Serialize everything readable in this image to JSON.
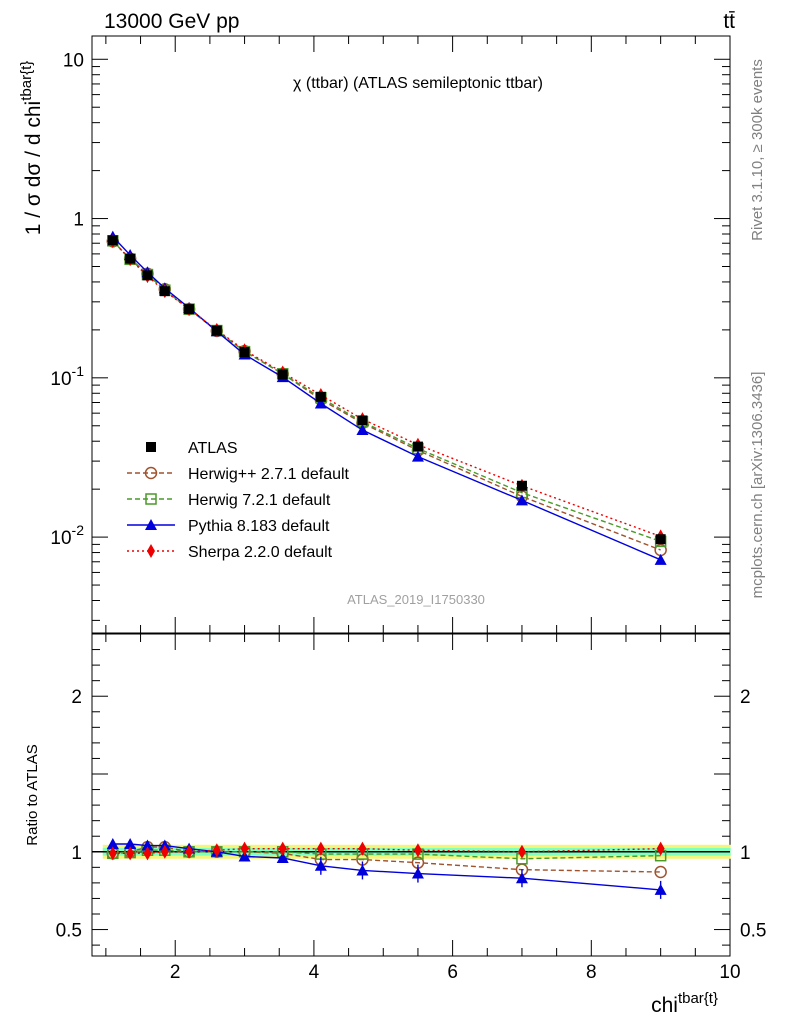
{
  "header": {
    "energy_label": "13000 GeV pp",
    "process_label": "tt̄"
  },
  "side": {
    "rivet_label": "Rivet 3.1.10, ≥ 300k events",
    "mcplots_label": "mcplots.cern.ch [arXiv:1306.3436]"
  },
  "colors": {
    "atlas": "#000000",
    "herwigpp": "#a0522d",
    "herwig7": "#4a9a2a",
    "pythia": "#0000dd",
    "sherpa": "#ee0000",
    "band_inner": "#7fffc0",
    "band_outer": "#f5f57a"
  },
  "chart_data": [
    {
      "type": "line",
      "panel": "main",
      "title": "χ (ttbar) (ATLAS semileptonic ttbar)",
      "watermark": "ATLAS_2019_I1750330",
      "xlabel": "chi^{tbar{t}}",
      "ylabel": "1 / σ dσ / d chi^{tbar{t}}",
      "yscale": "log",
      "xlim": [
        0.8,
        10.0
      ],
      "ylim": [
        0.0025,
        14.0
      ],
      "legend_position": "middle-left",
      "x": [
        1.1,
        1.35,
        1.6,
        1.85,
        2.2,
        2.6,
        3.0,
        3.55,
        4.1,
        4.7,
        5.5,
        7.0,
        9.0
      ],
      "series": [
        {
          "name": "ATLAS",
          "key": "atlas",
          "marker": "square",
          "linestyle": "none",
          "values": [
            0.73,
            0.56,
            0.44,
            0.35,
            0.27,
            0.198,
            0.145,
            0.105,
            0.076,
            0.054,
            0.037,
            0.021,
            0.0097
          ]
        },
        {
          "name": "Herwig++ 2.7.1 default",
          "key": "herwigpp",
          "marker": "open-circle",
          "linestyle": "dashed",
          "values": [
            0.72,
            0.56,
            0.45,
            0.36,
            0.27,
            0.197,
            0.147,
            0.106,
            0.073,
            0.052,
            0.035,
            0.018,
            0.0083
          ]
        },
        {
          "name": "Herwig 7.2.1 default",
          "key": "herwig7",
          "marker": "open-square",
          "linestyle": "dashed",
          "values": [
            0.725,
            0.555,
            0.445,
            0.355,
            0.27,
            0.198,
            0.146,
            0.106,
            0.075,
            0.053,
            0.036,
            0.019,
            0.0094
          ]
        },
        {
          "name": "Pythia 8.183 default",
          "key": "pythia",
          "marker": "triangle",
          "linestyle": "solid",
          "values": [
            0.77,
            0.59,
            0.46,
            0.365,
            0.275,
            0.196,
            0.14,
            0.101,
            0.069,
            0.047,
            0.032,
            0.017,
            0.0072
          ]
        },
        {
          "name": "Sherpa 2.2.0 default",
          "key": "sherpa",
          "marker": "diamond",
          "linestyle": "dotted",
          "values": [
            0.72,
            0.555,
            0.435,
            0.35,
            0.27,
            0.2,
            0.149,
            0.108,
            0.078,
            0.055,
            0.038,
            0.021,
            0.0101
          ]
        }
      ],
      "ytick_labels": [
        "10^{-2}",
        "10^{-1}",
        "1",
        "10"
      ]
    },
    {
      "type": "line",
      "panel": "ratio",
      "ylabel": "Ratio to ATLAS",
      "xlim": [
        0.8,
        10.0
      ],
      "ylim": [
        0.33,
        2.4
      ],
      "x": [
        1.1,
        1.35,
        1.6,
        1.85,
        2.2,
        2.6,
        3.0,
        3.55,
        4.1,
        4.7,
        5.5,
        7.0,
        9.0
      ],
      "band": {
        "inner": 0.025,
        "outer": 0.045
      },
      "series": [
        {
          "name": "Herwig++ 2.7.1 default",
          "key": "herwigpp",
          "values": [
            0.99,
            1.0,
            1.03,
            1.03,
            1.0,
            1.0,
            1.0,
            0.99,
            0.95,
            0.95,
            0.93,
            0.885,
            0.87
          ]
        },
        {
          "name": "Herwig 7.2.1 default",
          "key": "herwig7",
          "values": [
            0.99,
            0.995,
            1.01,
            1.01,
            1.0,
            1.0,
            1.0,
            1.0,
            0.985,
            0.985,
            0.985,
            0.955,
            0.975
          ]
        },
        {
          "name": "Pythia 8.183 default",
          "key": "pythia",
          "values": [
            1.05,
            1.05,
            1.04,
            1.04,
            1.02,
            1.0,
            0.97,
            0.96,
            0.91,
            0.88,
            0.86,
            0.83,
            0.755
          ]
        },
        {
          "name": "Sherpa 2.2.0 default",
          "key": "sherpa",
          "values": [
            0.99,
            0.99,
            0.99,
            1.0,
            1.0,
            1.01,
            1.02,
            1.02,
            1.02,
            1.02,
            1.01,
            1.0,
            1.02
          ]
        }
      ],
      "xtick_labels": [
        "2",
        "4",
        "6",
        "8",
        "10"
      ],
      "ytick_labels": [
        "0.5",
        "1",
        "2"
      ]
    }
  ]
}
